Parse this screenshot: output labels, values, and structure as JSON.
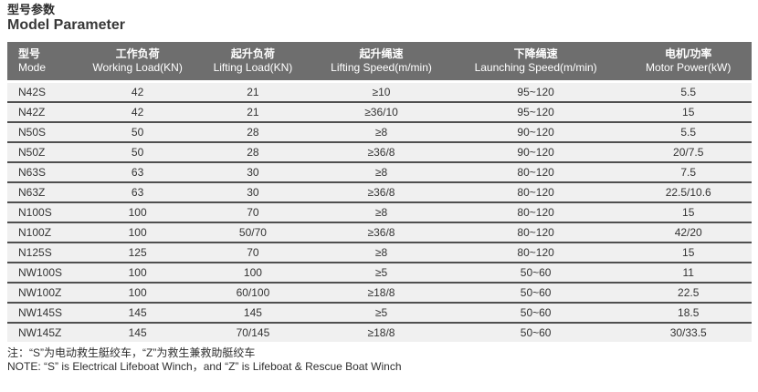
{
  "header": {
    "title_zh": "型号参数",
    "title_en": "Model Parameter"
  },
  "table": {
    "columns": [
      {
        "zh": "型号",
        "en": "Mode"
      },
      {
        "zh": "工作负荷",
        "en": "Working Load(KN)"
      },
      {
        "zh": "起升负荷",
        "en": "Lifting Load(KN)"
      },
      {
        "zh": "起升绳速",
        "en": "Lifting Speed(m/min)"
      },
      {
        "zh": "下降绳速",
        "en": "Launching Speed(m/min)"
      },
      {
        "zh": "电机/功率",
        "en": "Motor Power(kW)"
      }
    ],
    "rows": [
      [
        "N42S",
        "42",
        "21",
        "≥10",
        "95~120",
        "5.5"
      ],
      [
        "N42Z",
        "42",
        "21",
        "≥36/10",
        "95~120",
        "15"
      ],
      [
        "N50S",
        "50",
        "28",
        "≥8",
        "90~120",
        "5.5"
      ],
      [
        "N50Z",
        "50",
        "28",
        "≥36/8",
        "90~120",
        "20/7.5"
      ],
      [
        "N63S",
        "63",
        "30",
        "≥8",
        "80~120",
        "7.5"
      ],
      [
        "N63Z",
        "63",
        "30",
        "≥36/8",
        "80~120",
        "22.5/10.6"
      ],
      [
        "N100S",
        "100",
        "70",
        "≥8",
        "80~120",
        "15"
      ],
      [
        "N100Z",
        "100",
        "50/70",
        "≥36/8",
        "80~120",
        "42/20"
      ],
      [
        "N125S",
        "125",
        "70",
        "≥8",
        "80~120",
        "15"
      ],
      [
        "NW100S",
        "100",
        "100",
        "≥5",
        "50~60",
        "11"
      ],
      [
        "NW100Z",
        "100",
        "60/100",
        "≥18/8",
        "50~60",
        "22.5"
      ],
      [
        "NW145S",
        "145",
        "145",
        "≥5",
        "50~60",
        "18.5"
      ],
      [
        "NW145Z",
        "145",
        "70/145",
        "≥18/8",
        "50~60",
        "30/33.5"
      ]
    ]
  },
  "notes": {
    "zh": "注：“S”为电动救生艇绞车，“Z”为救生兼救助艇绞车",
    "en": "NOTE: “S” is Electrical Lifeboat Winch，and “Z” is Lifeboat & Rescue Boat Winch"
  },
  "colors": {
    "header_bg": "#6e6e6e",
    "header_text": "#ffffff",
    "row_bg": "#f0f0f0",
    "row_border": "#4f4f4f",
    "text": "#2e2e2e"
  }
}
